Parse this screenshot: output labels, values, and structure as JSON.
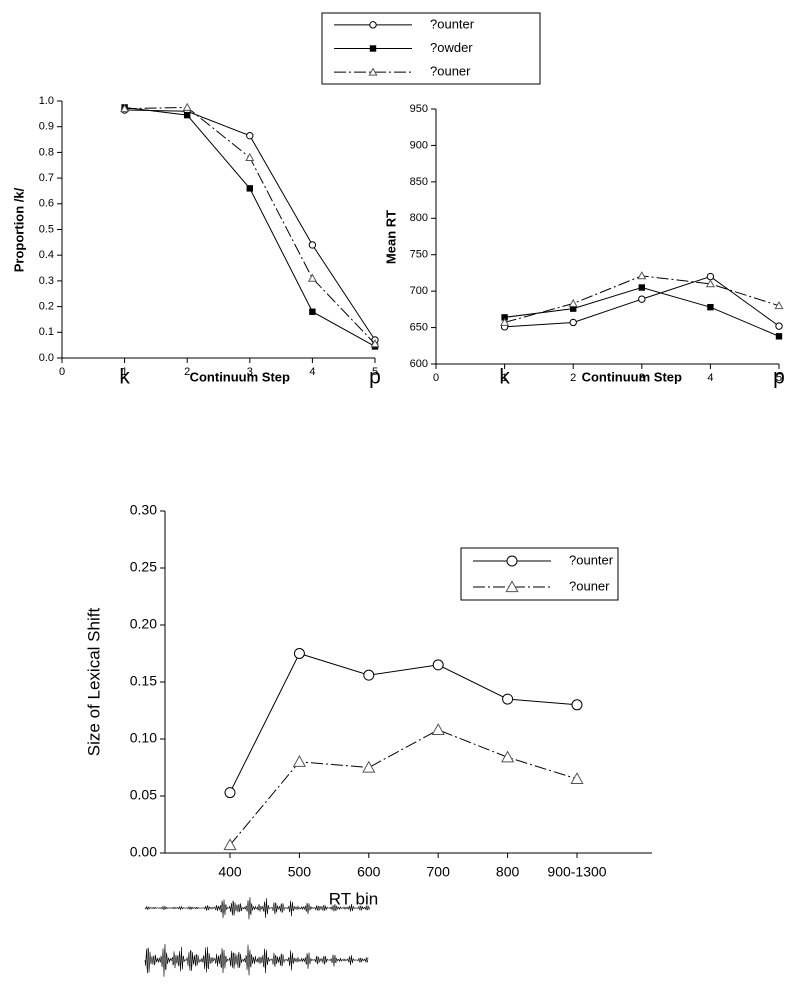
{
  "chart_data": [
    {
      "type": "line",
      "y_label": "Proportion /k/",
      "x_label": "Continuum Step",
      "x_endpoint_labels": [
        "k",
        "p"
      ],
      "x": [
        1,
        2,
        3,
        4,
        5
      ],
      "xlim": [
        0,
        5
      ],
      "xticks": [
        0,
        1,
        2,
        3,
        4,
        5
      ],
      "ylim": [
        0,
        1
      ],
      "yticks": [
        {
          "value": 0,
          "label": "0.0"
        },
        0.1,
        0.2,
        0.3,
        0.4,
        0.5,
        0.6,
        0.7,
        0.8,
        0.9,
        {
          "value": 1,
          "label": "1.0"
        }
      ],
      "legend": "top",
      "series": [
        {
          "name": "?ounter",
          "color": "#000000",
          "marker": "circle",
          "dash": false,
          "values": [
            0.965,
            0.96,
            0.865,
            0.44,
            0.07
          ]
        },
        {
          "name": "?owder",
          "color": "#000000",
          "marker": "square",
          "dash": false,
          "values": [
            0.975,
            0.945,
            0.66,
            0.18,
            0.045
          ]
        },
        {
          "name": "?ouner",
          "color": "#000000",
          "marker": "triangle",
          "dash": true,
          "values": [
            0.97,
            0.975,
            0.78,
            0.31,
            0.055
          ]
        }
      ]
    },
    {
      "type": "line",
      "y_label": "Mean RT",
      "x_label": "Continuum Step",
      "x_endpoint_labels": [
        "k",
        "p"
      ],
      "x": [
        1,
        2,
        3,
        4,
        5
      ],
      "xlim": [
        0,
        5
      ],
      "xticks": [
        0,
        1,
        2,
        3,
        4,
        5
      ],
      "ylim": [
        600,
        950
      ],
      "yticks": [
        600,
        650,
        700,
        750,
        800,
        850,
        900,
        950
      ],
      "series": [
        {
          "name": "?ounter",
          "color": "#000000",
          "marker": "circle",
          "dash": false,
          "values": [
            651,
            657,
            689,
            720,
            652
          ]
        },
        {
          "name": "?owder",
          "color": "#000000",
          "marker": "square",
          "dash": false,
          "values": [
            664,
            676,
            705,
            678,
            638
          ]
        },
        {
          "name": "?ouner",
          "color": "#000000",
          "marker": "triangle",
          "dash": true,
          "values": [
            657,
            683,
            721,
            710,
            680
          ]
        }
      ]
    },
    {
      "type": "line",
      "y_label": "Size of Lexical Shift",
      "x_label": "RT bin",
      "categories": [
        "400",
        "500",
        "600",
        "700",
        "800",
        "900-1300"
      ],
      "ylim": [
        0,
        0.3
      ],
      "yticks": [
        {
          "value": 0,
          "label": "0.00"
        },
        {
          "value": 0.05,
          "label": "0.05"
        },
        {
          "value": 0.1,
          "label": "0.10"
        },
        {
          "value": 0.15,
          "label": "0.15"
        },
        {
          "value": 0.2,
          "label": "0.20"
        },
        {
          "value": 0.25,
          "label": "0.25"
        },
        {
          "value": 0.3,
          "label": "0.30"
        }
      ],
      "legend": "upper right",
      "series": [
        {
          "name": "?ounter",
          "color": "#000000",
          "marker": "circle",
          "dash": false,
          "values": [
            0.053,
            0.175,
            0.156,
            0.165,
            0.135,
            0.13
          ]
        },
        {
          "name": "?ouner",
          "color": "#000000",
          "marker": "triangle",
          "dash": true,
          "values": [
            0.007,
            0.08,
            0.075,
            0.108,
            0.084,
            0.065
          ]
        }
      ]
    }
  ]
}
